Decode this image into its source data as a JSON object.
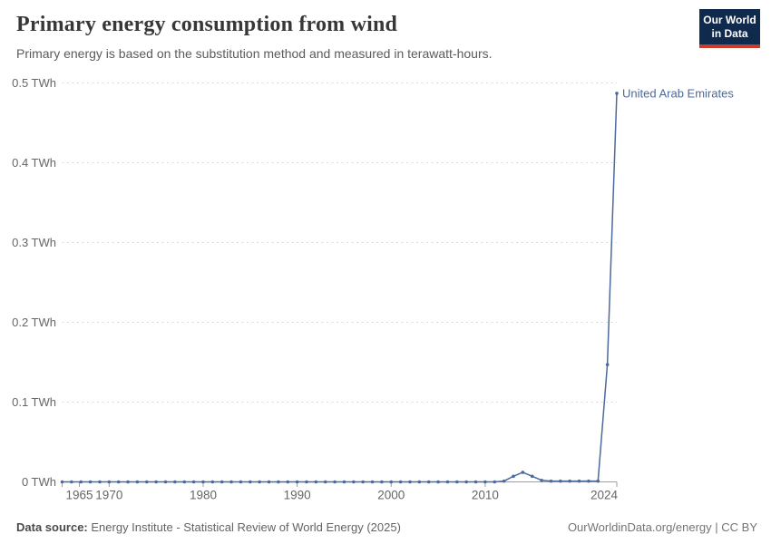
{
  "header": {
    "title": "Primary energy consumption from wind",
    "subtitle": "Primary energy is based on the substitution method and measured in terawatt-hours.",
    "logo": {
      "line1": "Our World",
      "line2": "in Data",
      "bg_color": "#102a4d",
      "accent_color": "#c73c2b"
    }
  },
  "chart_data": {
    "type": "line",
    "title": "Primary energy consumption from wind",
    "unit": "TWh",
    "xlabel": "",
    "ylabel": "",
    "xlim": [
      1965,
      2024
    ],
    "ylim": [
      0,
      0.5
    ],
    "grid": "horizontal-dashed",
    "legend_position": "end-of-line-label",
    "x_ticks": [
      1965,
      1970,
      1980,
      1990,
      2000,
      2010,
      2024
    ],
    "y_ticks": [
      0,
      0.1,
      0.2,
      0.3,
      0.4,
      0.5
    ],
    "y_tick_labels": [
      "0 TWh",
      "0.1 TWh",
      "0.2 TWh",
      "0.3 TWh",
      "0.4 TWh",
      "0.5 TWh"
    ],
    "series": [
      {
        "name": "United Arab Emirates",
        "color": "#4c6a9c",
        "x": [
          1965,
          1966,
          1967,
          1968,
          1969,
          1970,
          1971,
          1972,
          1973,
          1974,
          1975,
          1976,
          1977,
          1978,
          1979,
          1980,
          1981,
          1982,
          1983,
          1984,
          1985,
          1986,
          1987,
          1988,
          1989,
          1990,
          1991,
          1992,
          1993,
          1994,
          1995,
          1996,
          1997,
          1998,
          1999,
          2000,
          2001,
          2002,
          2003,
          2004,
          2005,
          2006,
          2007,
          2008,
          2009,
          2010,
          2011,
          2012,
          2013,
          2014,
          2015,
          2016,
          2017,
          2018,
          2019,
          2020,
          2021,
          2022,
          2023,
          2024
        ],
        "values": [
          0,
          0,
          0,
          0,
          0,
          0,
          0,
          0,
          0,
          0,
          0,
          0,
          0,
          0,
          0,
          0,
          0,
          0,
          0,
          0,
          0,
          0,
          0,
          0,
          0,
          0,
          0,
          0,
          0,
          0,
          0,
          0,
          0,
          0,
          0,
          0,
          0,
          0,
          0,
          0,
          0,
          0,
          0,
          0,
          0,
          0,
          0,
          0.001,
          0.007,
          0.012,
          0.007,
          0.002,
          0.001,
          0.001,
          0.001,
          0.001,
          0.001,
          0.001,
          0.147,
          0.487
        ]
      }
    ],
    "colors": {
      "line": "#4c6a9c",
      "grid": "#d9d9d9",
      "axis": "#9e9e9e",
      "tick_text": "#666666"
    }
  },
  "footer": {
    "source_label": "Data source:",
    "source_text": "Energy Institute - Statistical Review of World Energy (2025)",
    "credit": "OurWorldinData.org/energy | CC BY"
  }
}
